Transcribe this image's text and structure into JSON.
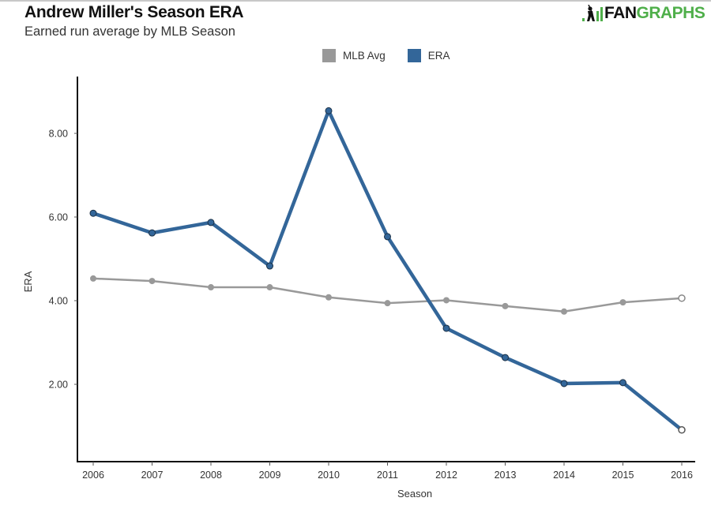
{
  "header": {
    "title": "Andrew Miller's Season ERA",
    "subtitle": "Earned run average by MLB Season"
  },
  "logo": {
    "part1": "FAN",
    "part2": "GRAPHS",
    "icon": "batter-silhouette-icon"
  },
  "colors": {
    "era": "#336699",
    "mlb_avg": "#999999",
    "axis": "#111111",
    "logo_green": "#4faf4a"
  },
  "chart_data": {
    "type": "line",
    "title": "Andrew Miller's Season ERA",
    "subtitle": "Earned run average by MLB Season",
    "xlabel": "Season",
    "ylabel": "ERA",
    "x": [
      2006,
      2007,
      2008,
      2009,
      2010,
      2011,
      2012,
      2013,
      2014,
      2015,
      2016
    ],
    "x_tick_labels": [
      "2006",
      "2007",
      "2008",
      "2009",
      "2010",
      "2011",
      "2012",
      "2013",
      "2014",
      "2015",
      "2016"
    ],
    "y_ticks": [
      2,
      4,
      6,
      8
    ],
    "y_tick_labels": [
      "2.00",
      "4.00",
      "6.00",
      "8.00"
    ],
    "ylim": [
      0.15,
      9.4
    ],
    "grid": false,
    "legend_position": "top-center",
    "legend": [
      "MLB Avg",
      "ERA"
    ],
    "series": [
      {
        "name": "MLB Avg",
        "color": "#999999",
        "values": [
          4.53,
          4.47,
          4.32,
          4.32,
          4.08,
          3.94,
          4.01,
          3.87,
          3.74,
          3.96,
          4.06
        ]
      },
      {
        "name": "ERA",
        "color": "#336699",
        "values": [
          6.09,
          5.62,
          5.87,
          4.83,
          8.54,
          5.53,
          3.34,
          2.64,
          2.02,
          2.04,
          0.91
        ]
      }
    ],
    "note": "Final (2016) points drawn as hollow markers"
  }
}
